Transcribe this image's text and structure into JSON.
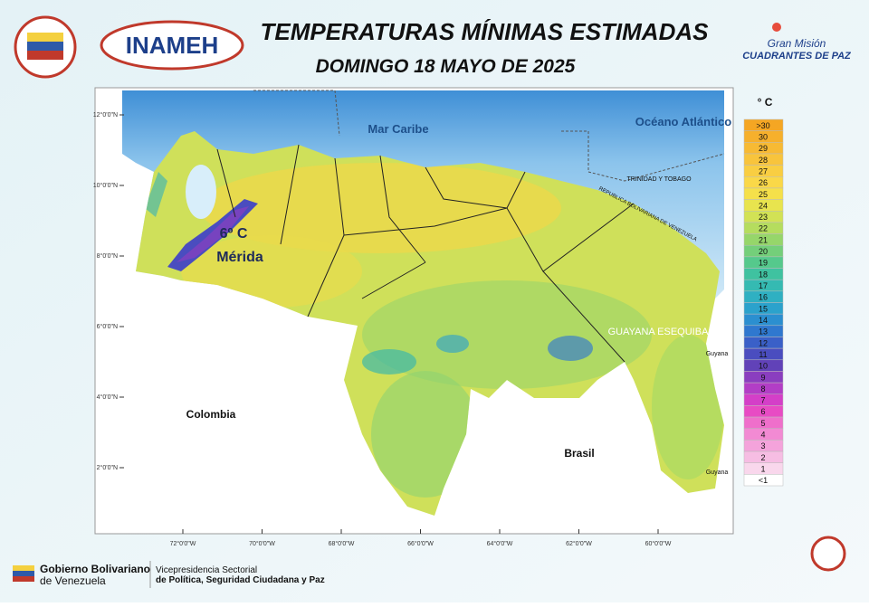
{
  "header": {
    "title": "TEMPERATURAS MÍNIMAS ESTIMADAS",
    "subtitle": "DOMINGO 18 MAYO DE 2025",
    "logo_left": "INAMEH",
    "logo_right_top": "Gran Misión",
    "logo_right_bottom": "CUADRANTES DE PAZ"
  },
  "map": {
    "labels": {
      "sea": "Mar Caribe",
      "ocean": "Océano Atlántico",
      "colombia": "Colombia",
      "brasil": "Brasil",
      "esequibo": "GUAYANA ESEQUIBA",
      "min_value": "6º C",
      "min_place": "Mérida",
      "trinidad": "TRINIDAD Y TOBAGO",
      "venezuela": "REPUBLICA BOLIVARIANA DE VENEZUELA",
      "guyana_1": "Guyana",
      "guyana_2": "Guyana"
    },
    "lat_labels": [
      "12°0'0\"N",
      "10°0'0\"N",
      "8°0'0\"N",
      "6°0'0\"N",
      "4°0'0\"N",
      "2°0'0\"N"
    ],
    "lon_labels": [
      "72°0'0\"W",
      "70°0'0\"W",
      "68°0'0\"W",
      "66°0'0\"W",
      "64°0'0\"W",
      "62°0'0\"W",
      "60°0'0\"W"
    ]
  },
  "legend": {
    "title": "° C",
    "items": [
      {
        "label": ">30",
        "color": "#f5a623"
      },
      {
        "label": "30",
        "color": "#f6b02c"
      },
      {
        "label": "29",
        "color": "#f7ba34"
      },
      {
        "label": "28",
        "color": "#f8c43c"
      },
      {
        "label": "27",
        "color": "#f9ce42"
      },
      {
        "label": "26",
        "color": "#fad848"
      },
      {
        "label": "25",
        "color": "#f5e04a"
      },
      {
        "label": "24",
        "color": "#e8e44e"
      },
      {
        "label": "23",
        "color": "#d2e255"
      },
      {
        "label": "22",
        "color": "#b5dd5e"
      },
      {
        "label": "21",
        "color": "#96d66a"
      },
      {
        "label": "20",
        "color": "#74cf7a"
      },
      {
        "label": "19",
        "color": "#55c98c"
      },
      {
        "label": "18",
        "color": "#3fc2a0"
      },
      {
        "label": "17",
        "color": "#35bab2"
      },
      {
        "label": "16",
        "color": "#2fb0c2"
      },
      {
        "label": "15",
        "color": "#2ba2cc"
      },
      {
        "label": "14",
        "color": "#2b8fd0"
      },
      {
        "label": "13",
        "color": "#2f78cf"
      },
      {
        "label": "12",
        "color": "#3a60c8"
      },
      {
        "label": "11",
        "color": "#4a4dbf"
      },
      {
        "label": "10",
        "color": "#6142b8"
      },
      {
        "label": "9",
        "color": "#8a3ebf"
      },
      {
        "label": "8",
        "color": "#b23ec6"
      },
      {
        "label": "7",
        "color": "#d43fc8"
      },
      {
        "label": "6",
        "color": "#e84bc4"
      },
      {
        "label": "5",
        "color": "#ef6fcb"
      },
      {
        "label": "4",
        "color": "#f28ad3"
      },
      {
        "label": "3",
        "color": "#f4a3db"
      },
      {
        "label": "2",
        "color": "#f6bde3"
      },
      {
        "label": "1",
        "color": "#f9d7ec"
      },
      {
        "label": "<1",
        "color": "#ffffff"
      }
    ]
  },
  "footer": {
    "gov_1": "Gobierno Bolivariano",
    "gov_2": "de Venezuela",
    "vp_1": "Vicepresidencia Sectorial",
    "vp_2": "de Política, Seguridad Ciudadana y Paz"
  }
}
